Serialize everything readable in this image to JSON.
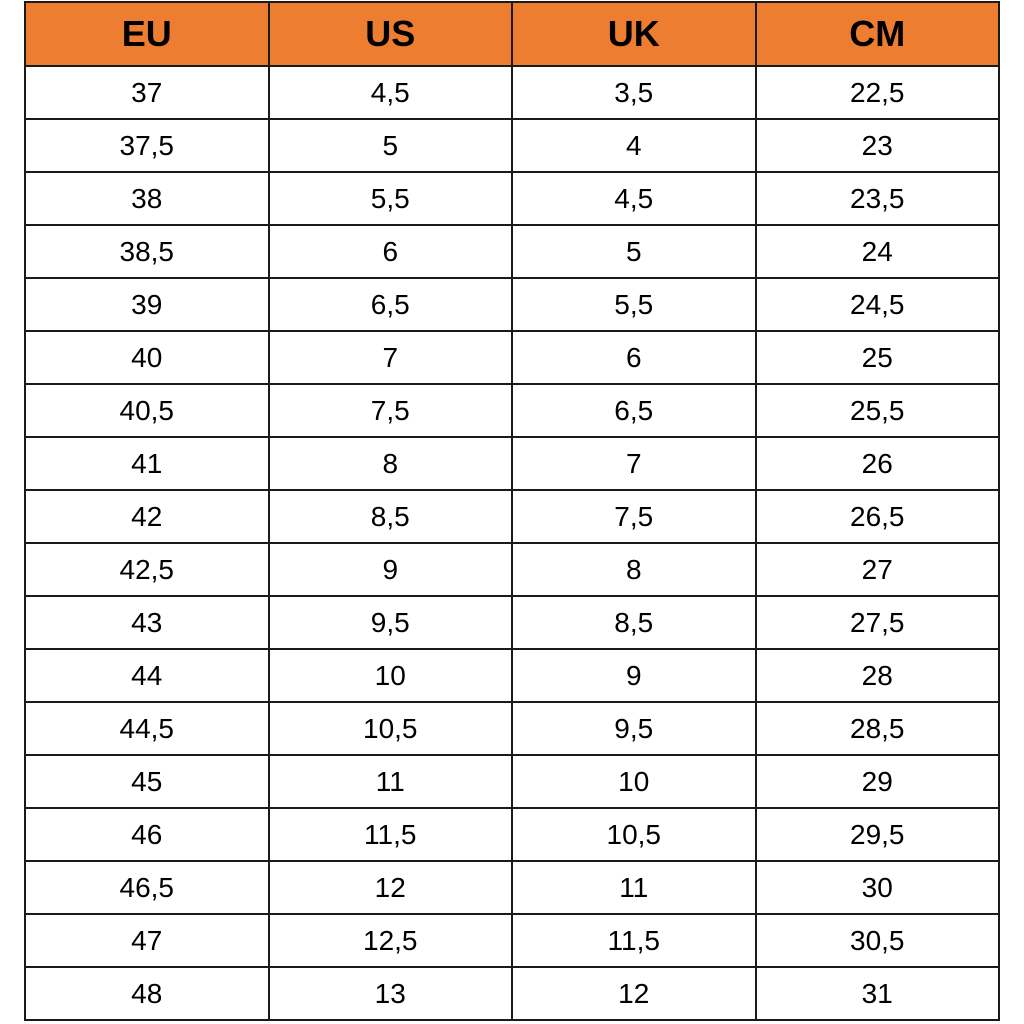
{
  "header_color": "#ED7D31",
  "columns": [
    "EU",
    "US",
    "UK",
    "CM"
  ],
  "rows": [
    [
      "37",
      "4,5",
      "3,5",
      "22,5"
    ],
    [
      "37,5",
      "5",
      "4",
      "23"
    ],
    [
      "38",
      "5,5",
      "4,5",
      "23,5"
    ],
    [
      "38,5",
      "6",
      "5",
      "24"
    ],
    [
      "39",
      "6,5",
      "5,5",
      "24,5"
    ],
    [
      "40",
      "7",
      "6",
      "25"
    ],
    [
      "40,5",
      "7,5",
      "6,5",
      "25,5"
    ],
    [
      "41",
      "8",
      "7",
      "26"
    ],
    [
      "42",
      "8,5",
      "7,5",
      "26,5"
    ],
    [
      "42,5",
      "9",
      "8",
      "27"
    ],
    [
      "43",
      "9,5",
      "8,5",
      "27,5"
    ],
    [
      "44",
      "10",
      "9",
      "28"
    ],
    [
      "44,5",
      "10,5",
      "9,5",
      "28,5"
    ],
    [
      "45",
      "11",
      "10",
      "29"
    ],
    [
      "46",
      "11,5",
      "10,5",
      "29,5"
    ],
    [
      "46,5",
      "12",
      "11",
      "30"
    ],
    [
      "47",
      "12,5",
      "11,5",
      "30,5"
    ],
    [
      "48",
      "13",
      "12",
      "31"
    ]
  ]
}
